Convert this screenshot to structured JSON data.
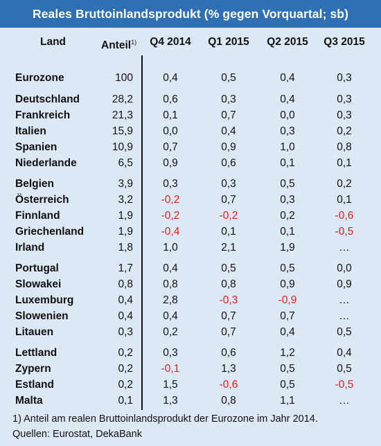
{
  "title": "Reales Bruttoinlandsprodukt (% gegen Vorquartal; sb)",
  "headers": {
    "land": "Land",
    "anteil": "Anteil",
    "anteil_sup": "1)",
    "q4_2014": "Q4 2014",
    "q1_2015": "Q1 2015",
    "q2_2015": "Q2 2015",
    "q3_2015": "Q3 2015"
  },
  "rows": [
    {
      "land": "Eurozone",
      "anteil": "100",
      "q4": "0,4",
      "q1": "0,5",
      "q2": "0,4",
      "q3": "0,3"
    },
    {
      "land": "Deutschland",
      "anteil": "28,2",
      "q4": "0,6",
      "q1": "0,3",
      "q2": "0,4",
      "q3": "0,3"
    },
    {
      "land": "Frankreich",
      "anteil": "21,3",
      "q4": "0,1",
      "q1": "0,7",
      "q2": "0,0",
      "q3": "0,3"
    },
    {
      "land": "Italien",
      "anteil": "15,9",
      "q4": "0,0",
      "q1": "0,4",
      "q2": "0,3",
      "q3": "0,2"
    },
    {
      "land": "Spanien",
      "anteil": "10,9",
      "q4": "0,7",
      "q1": "0,9",
      "q2": "1,0",
      "q3": "0,8"
    },
    {
      "land": "Niederlande",
      "anteil": "6,5",
      "q4": "0,9",
      "q1": "0,6",
      "q2": "0,1",
      "q3": "0,1"
    },
    {
      "land": "Belgien",
      "anteil": "3,9",
      "q4": "0,3",
      "q1": "0,3",
      "q2": "0,5",
      "q3": "0,2"
    },
    {
      "land": "Österreich",
      "anteil": "3,2",
      "q4": "-0,2",
      "q1": "0,7",
      "q2": "0,3",
      "q3": "0,1"
    },
    {
      "land": "Finnland",
      "anteil": "1,9",
      "q4": "-0,2",
      "q1": "-0,2",
      "q2": "0,2",
      "q3": "-0,6"
    },
    {
      "land": "Griechenland",
      "anteil": "1,9",
      "q4": "-0,4",
      "q1": "0,1",
      "q2": "0,1",
      "q3": "-0,5"
    },
    {
      "land": "Irland",
      "anteil": "1,8",
      "q4": "1,0",
      "q1": "2,1",
      "q2": "1,9",
      "q3": "…"
    },
    {
      "land": "Portugal",
      "anteil": "1,7",
      "q4": "0,4",
      "q1": "0,5",
      "q2": "0,5",
      "q3": "0,0"
    },
    {
      "land": "Slowakei",
      "anteil": "0,8",
      "q4": "0,8",
      "q1": "0,8",
      "q2": "0,9",
      "q3": "0,9"
    },
    {
      "land": "Luxemburg",
      "anteil": "0,4",
      "q4": "2,8",
      "q1": "-0,3",
      "q2": "-0,9",
      "q3": "…"
    },
    {
      "land": "Slowenien",
      "anteil": "0,4",
      "q4": "0,4",
      "q1": "0,7",
      "q2": "0,7",
      "q3": "…"
    },
    {
      "land": "Litauen",
      "anteil": "0,3",
      "q4": "0,2",
      "q1": "0,7",
      "q2": "0,4",
      "q3": "0,5"
    },
    {
      "land": "Lettland",
      "anteil": "0,2",
      "q4": "0,3",
      "q1": "0,6",
      "q2": "1,2",
      "q3": "0,4"
    },
    {
      "land": "Zypern",
      "anteil": "0,2",
      "q4": "-0,1",
      "q1": "1,3",
      "q2": "0,5",
      "q3": "0,5"
    },
    {
      "land": "Estland",
      "anteil": "0,2",
      "q4": "1,5",
      "q1": "-0,6",
      "q2": "0,5",
      "q3": "-0,5"
    },
    {
      "land": "Malta",
      "anteil": "0,1",
      "q4": "1,3",
      "q1": "0,8",
      "q2": "1,1",
      "q3": "…"
    }
  ],
  "footnotes": [
    "1) Anteil am realen Bruttoinlandsprodukt der Eurozone im Jahr 2014.",
    "Quellen: Eurostat, DekaBank"
  ],
  "colors": {
    "title_bar": "#2f6fb3",
    "background": "#dde8f5",
    "negative": "#e0211b"
  }
}
